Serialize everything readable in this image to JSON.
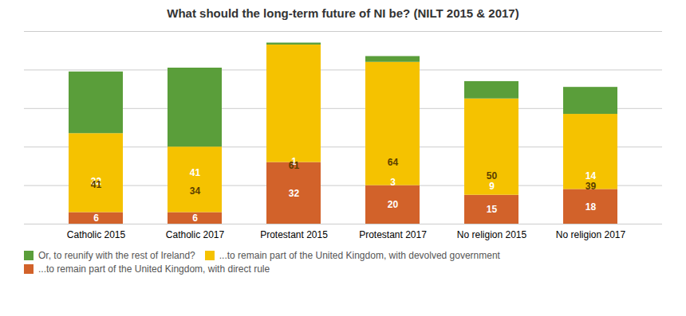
{
  "chart_data": {
    "type": "bar",
    "stacked": true,
    "title": "What should the long-term future of NI be? (NILT 2015 & 2017)",
    "categories": [
      "Catholic 2015",
      "Catholic 2017",
      "Protestant 2015",
      "Protestant 2017",
      "No religion 2015",
      "No religion 2017"
    ],
    "series": [
      {
        "name": "...to remain part of the United Kingdom, with direct rule",
        "color": "#d2622a",
        "values": [
          6,
          6,
          32,
          20,
          15,
          18
        ]
      },
      {
        "name": "...to remain part of the United Kingdom, with devolved government",
        "color": "#f5c200",
        "values": [
          41,
          34,
          61,
          64,
          50,
          39
        ]
      },
      {
        "name": "Or, to reunify with the rest of Ireland?",
        "color": "#5a9e3a",
        "values": [
          32,
          41,
          1,
          3,
          9,
          14
        ]
      }
    ],
    "ylim": [
      0,
      100
    ],
    "yticks": [
      0,
      20,
      40,
      60,
      80,
      100
    ],
    "grid": true,
    "tick_labels": "x",
    "data_labels": true,
    "legend": "lower left"
  }
}
